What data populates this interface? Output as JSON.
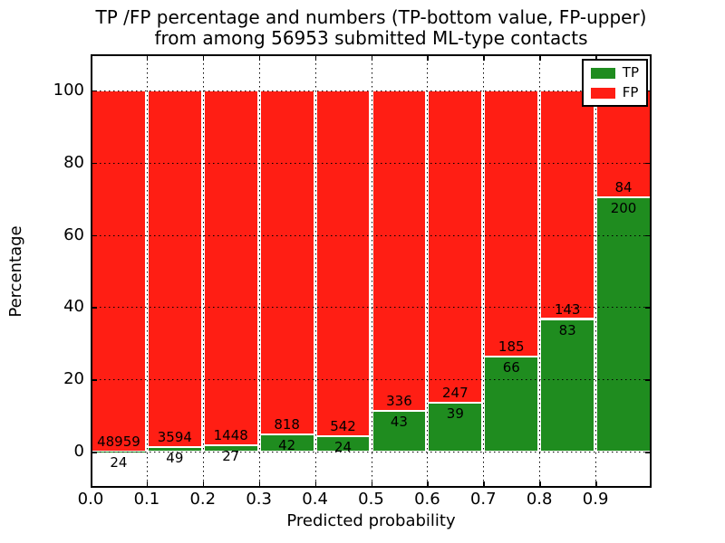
{
  "title": {
    "line1": "TP /FP percentage and numbers (TP-bottom value, FP-upper)",
    "line2": "from among 56953 submitted ML-type contacts"
  },
  "axes": {
    "xlabel": "Predicted probability",
    "ylabel": "Percentage",
    "x_tick_labels": [
      "0.0",
      "0.1",
      "0.2",
      "0.3",
      "0.4",
      "0.5",
      "0.6",
      "0.7",
      "0.8",
      "0.9"
    ],
    "y_tick_labels": [
      "0",
      "20",
      "40",
      "60",
      "80",
      "100"
    ],
    "y_tick_values": [
      0,
      20,
      40,
      60,
      80,
      100
    ],
    "xlim": [
      0.0,
      1.0
    ],
    "ylim": [
      -10,
      110
    ],
    "grid_style": "dotted"
  },
  "legend": {
    "position": "upper-right",
    "entries": [
      {
        "label": "TP",
        "color": "#1f8c1f"
      },
      {
        "label": "FP",
        "color": "#ff1e14"
      }
    ]
  },
  "chart_data": {
    "type": "bar",
    "stacked": true,
    "normalized": "each bin scaled to 100%",
    "title": "TP /FP percentage and numbers (TP-bottom value, FP-upper) from among 56953 submitted ML-type contacts",
    "xlabel": "Predicted probability",
    "ylabel": "Percentage",
    "total_contacts": 56953,
    "bin_edges": [
      0.0,
      0.1,
      0.2,
      0.3,
      0.4,
      0.5,
      0.6,
      0.7,
      0.8,
      0.9,
      1.0
    ],
    "categories": [
      "0.0-0.1",
      "0.1-0.2",
      "0.2-0.3",
      "0.3-0.4",
      "0.4-0.5",
      "0.5-0.6",
      "0.6-0.7",
      "0.7-0.8",
      "0.8-0.9",
      "0.9-1.0"
    ],
    "series": [
      {
        "name": "TP",
        "color": "#1f8c1f",
        "counts": [
          24,
          49,
          27,
          42,
          24,
          43,
          39,
          66,
          83,
          200
        ],
        "percent": [
          0.05,
          1.35,
          1.83,
          4.88,
          4.24,
          11.35,
          13.64,
          26.29,
          36.73,
          70.42
        ]
      },
      {
        "name": "FP",
        "color": "#ff1e14",
        "counts": [
          48959,
          3594,
          1448,
          818,
          542,
          336,
          247,
          185,
          143,
          84
        ],
        "percent": [
          99.95,
          98.65,
          98.17,
          95.12,
          95.76,
          88.65,
          86.36,
          73.71,
          63.27,
          29.58
        ]
      }
    ],
    "xlim": [
      0,
      1
    ],
    "ylim": [
      -10,
      110
    ],
    "legend_entries": [
      "TP",
      "FP"
    ]
  }
}
